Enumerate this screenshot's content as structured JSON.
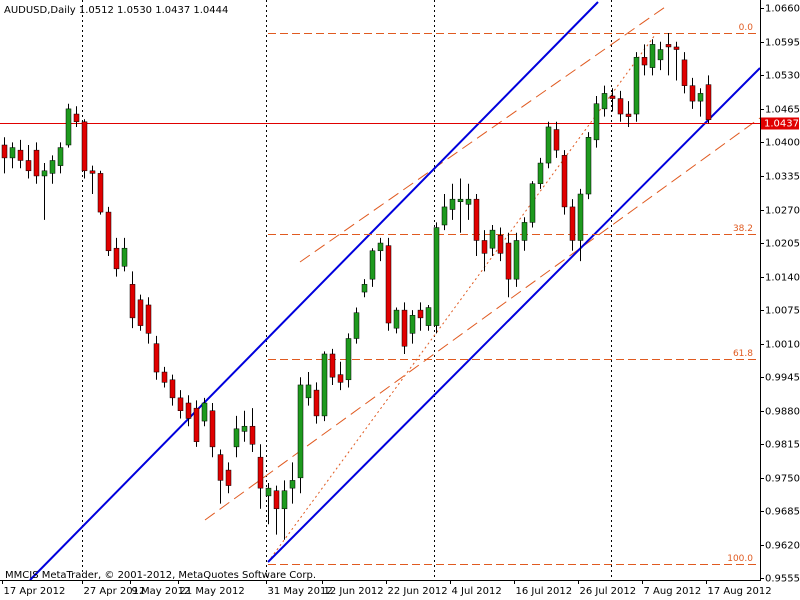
{
  "chart_data": {
    "type": "candlestick",
    "title": "AUDUSD,Daily  1.0512 1.0530 1.0437 1.0444",
    "footer": "MMCIS MetaTrader, © 2001-2012, MetaQuotes Software Corp.",
    "categories": [
      "17 Apr 2012",
      null,
      null,
      null,
      null,
      null,
      null,
      null,
      null,
      null,
      "27 Apr 2012",
      null,
      null,
      null,
      null,
      null,
      "9 May 2012",
      null,
      null,
      null,
      null,
      null,
      "21 May 2012",
      null,
      null,
      null,
      null,
      null,
      null,
      null,
      null,
      null,
      null,
      "31 May 2012",
      null,
      null,
      null,
      null,
      null,
      null,
      "12 Jun 2012",
      null,
      null,
      null,
      null,
      null,
      null,
      null,
      "22 Jun 2012",
      null,
      null,
      null,
      null,
      null,
      null,
      null,
      "4 Jul 2012",
      null,
      null,
      null,
      null,
      null,
      null,
      null,
      "16 Jul 2012",
      null,
      null,
      null,
      null,
      null,
      null,
      null,
      "26 Jul 2012",
      null,
      null,
      null,
      null,
      null,
      null,
      null,
      "7 Aug 2012",
      null,
      null,
      null,
      null,
      null,
      null,
      null,
      "17 Aug 2012"
    ],
    "open": [
      1.0395,
      1.037,
      1.0385,
      1.0365,
      1.0385,
      1.0335,
      1.034,
      1.0355,
      1.0395,
      1.0455,
      1.044,
      1.0345,
      1.034,
      1.0265,
      1.0195,
      1.016,
      1.0125,
      1.0095,
      1.0085,
      1.001,
      0.9955,
      0.994,
      0.9905,
      0.9895,
      0.9885,
      0.986,
      0.988,
      0.9795,
      0.9765,
      0.981,
      0.984,
      0.985,
      0.979,
      0.9715,
      0.9725,
      0.969,
      0.973,
      0.975,
      0.9905,
      0.992,
      0.987,
      0.999,
      0.995,
      0.994,
      1.002,
      1.011,
      1.0135,
      1.019,
      1.02,
      1.004,
      1.0075,
      1.003,
      1.0075,
      1.0045,
      1.0045,
      1.024,
      1.027,
      1.0285,
      1.028,
      1.029,
      1.021,
      1.0195,
      1.022,
      1.0205,
      1.0135,
      1.021,
      1.0245,
      1.032,
      1.036,
      1.0425,
      1.0375,
      1.0275,
      1.021,
      1.03,
      1.0405,
      1.0465,
      1.049,
      1.0485,
      1.0455,
      1.0455,
      1.0565,
      1.0545,
      1.056,
      1.059,
      1.0585,
      1.056,
      1.051,
      1.048,
      1.0512
    ],
    "high": [
      1.041,
      1.04,
      1.0405,
      1.0395,
      1.04,
      1.036,
      1.0375,
      1.04,
      1.0475,
      1.047,
      1.0445,
      1.0355,
      1.0345,
      1.0275,
      1.0215,
      1.0215,
      1.015,
      1.0105,
      1.01,
      1.0025,
      0.9965,
      0.995,
      0.992,
      0.991,
      0.99,
      0.9905,
      0.9895,
      0.9805,
      0.978,
      0.987,
      0.988,
      0.9885,
      0.9815,
      0.974,
      0.9735,
      0.9745,
      0.978,
      0.9945,
      0.9955,
      0.9935,
      0.9995,
      1.0,
      0.9975,
      1.003,
      1.008,
      1.0135,
      1.0195,
      1.0215,
      1.0215,
      1.008,
      1.009,
      1.0075,
      1.009,
      1.0085,
      1.0245,
      1.03,
      1.032,
      1.033,
      1.032,
      1.03,
      1.023,
      1.024,
      1.0235,
      1.0225,
      1.0225,
      1.0255,
      1.0325,
      1.037,
      1.044,
      1.044,
      1.0385,
      1.029,
      1.031,
      1.042,
      1.049,
      1.051,
      1.0505,
      1.05,
      1.048,
      1.0575,
      1.059,
      1.06,
      1.0595,
      1.0612,
      1.0595,
      1.0575,
      1.0525,
      1.0505,
      1.053
    ],
    "low": [
      1.034,
      1.035,
      1.035,
      1.033,
      1.032,
      1.025,
      1.032,
      1.034,
      1.039,
      1.043,
      1.033,
      1.03,
      1.026,
      1.018,
      1.014,
      1.015,
      1.004,
      1.0035,
      1.001,
      0.994,
      0.9925,
      0.989,
      0.9865,
      0.985,
      0.981,
      0.985,
      0.979,
      0.97,
      0.972,
      0.979,
      0.982,
      0.98,
      0.969,
      0.966,
      0.964,
      0.963,
      0.97,
      0.972,
      0.989,
      0.9855,
      0.986,
      0.993,
      0.992,
      0.9925,
      1.001,
      1.01,
      1.012,
      1.017,
      1.0035,
      1.003,
      0.999,
      1.001,
      1.0035,
      1.0035,
      1.003,
      1.023,
      1.025,
      1.0225,
      1.025,
      1.018,
      1.015,
      1.018,
      1.017,
      1.01,
      1.012,
      1.019,
      1.0235,
      1.031,
      1.035,
      1.037,
      1.026,
      1.019,
      1.017,
      1.029,
      1.039,
      1.045,
      1.046,
      1.044,
      1.043,
      1.044,
      1.053,
      1.053,
      1.054,
      1.053,
      1.052,
      1.0495,
      1.0465,
      1.045,
      1.0437
    ],
    "close": [
      1.037,
      1.039,
      1.0365,
      1.0345,
      1.0335,
      1.0345,
      1.0365,
      1.039,
      1.0465,
      1.044,
      1.0345,
      1.034,
      1.0265,
      1.019,
      1.0155,
      1.0195,
      1.006,
      1.0045,
      1.003,
      0.9955,
      0.9935,
      0.9905,
      0.988,
      0.9865,
      0.982,
      0.9895,
      0.981,
      0.9745,
      0.9735,
      0.9845,
      0.985,
      0.9815,
      0.973,
      0.973,
      0.969,
      0.9725,
      0.9745,
      0.993,
      0.993,
      0.987,
      0.999,
      0.9945,
      0.9935,
      1.002,
      1.007,
      1.0125,
      1.019,
      1.0205,
      1.005,
      1.0075,
      1.0005,
      1.0065,
      1.006,
      1.008,
      1.0235,
      1.0275,
      1.029,
      1.029,
      1.029,
      1.021,
      1.0185,
      1.023,
      1.0185,
      1.0135,
      1.021,
      1.0245,
      1.032,
      1.036,
      1.043,
      1.0385,
      1.0275,
      1.021,
      1.03,
      1.041,
      1.0475,
      1.0495,
      1.0485,
      1.0455,
      1.045,
      1.0565,
      1.055,
      1.059,
      1.058,
      1.0585,
      1.058,
      1.051,
      1.048,
      1.0495,
      1.0444
    ],
    "up_color": "#1e9a1e",
    "down_color": "#e00000",
    "ylim": [
      0.9552,
      1.0676
    ],
    "yticks": [
      {
        "value": 1.066,
        "label": "1.0660"
      },
      {
        "value": 1.0595,
        "label": "1.0595"
      },
      {
        "value": 1.053,
        "label": "1.0530"
      },
      {
        "value": 1.0465,
        "label": "1.0465"
      },
      {
        "value": 1.04,
        "label": "1.0400"
      },
      {
        "value": 1.0335,
        "label": "1.0335"
      },
      {
        "value": 1.027,
        "label": "1.0270"
      },
      {
        "value": 1.0205,
        "label": "1.0205"
      },
      {
        "value": 1.014,
        "label": "1.0140"
      },
      {
        "value": 1.0075,
        "label": "1.0075"
      },
      {
        "value": 1.001,
        "label": "1.0010"
      },
      {
        "value": 0.9945,
        "label": "0.9945"
      },
      {
        "value": 0.988,
        "label": "0.9880"
      },
      {
        "value": 0.9815,
        "label": "0.9815"
      },
      {
        "value": 0.975,
        "label": "0.9750"
      },
      {
        "value": 0.9685,
        "label": "0.9685"
      },
      {
        "value": 0.962,
        "label": "0.9620"
      },
      {
        "value": 0.9555,
        "label": "0.9555"
      }
    ],
    "grid": false,
    "fibo_color": "#e05a20",
    "fibo_levels": [
      {
        "value": 1.0613,
        "label": "0.0"
      },
      {
        "value": 1.0222,
        "label": "38.2"
      },
      {
        "value": 0.998,
        "label": "61.8"
      },
      {
        "value": 0.9583,
        "label": "100.0"
      }
    ],
    "price_line": {
      "value": 1.0437,
      "label": "1.0437",
      "color": "#e00000"
    }
  }
}
